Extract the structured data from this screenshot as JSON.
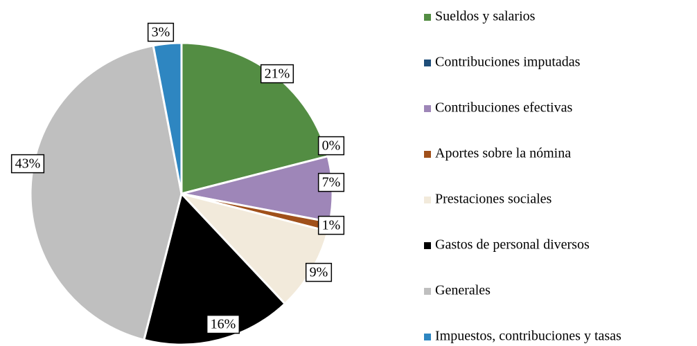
{
  "chart_data": {
    "type": "pie",
    "categories": [
      "Sueldos y salarios",
      "Contribuciones imputadas",
      "Contribuciones efectivas",
      "Aportes sobre la nómina",
      "Prestaciones sociales",
      "Gastos de personal diversos",
      "Generales",
      "Impuestos, contribuciones y tasas"
    ],
    "values": [
      21,
      0,
      7,
      1,
      9,
      16,
      43,
      3
    ],
    "value_labels": [
      "21%",
      "0%",
      "7%",
      "1%",
      "9%",
      "16%",
      "43%",
      "3%"
    ],
    "colors": [
      "#538d43",
      "#1f4e79",
      "#9e86b8",
      "#a0501a",
      "#f2eadb",
      "#000000",
      "#bfbfbf",
      "#2e86c1"
    ],
    "legend": "right"
  }
}
